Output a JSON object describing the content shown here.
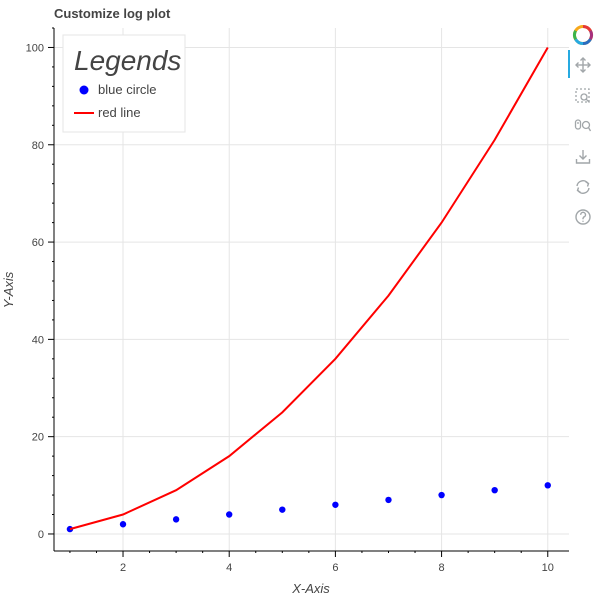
{
  "chart_data": {
    "type": "line",
    "title": "Customize log plot",
    "xlabel": "X-Axis",
    "ylabel": "Y-Axis",
    "xlim": [
      0.7,
      10.4
    ],
    "ylim": [
      -3.5,
      104
    ],
    "x_ticks": [
      2,
      4,
      6,
      8,
      10
    ],
    "y_ticks": [
      0,
      20,
      40,
      60,
      80,
      100
    ],
    "x_tick_labels": [
      "2",
      "4",
      "6",
      "8",
      "10"
    ],
    "y_tick_labels": [
      "0",
      "20",
      "40",
      "60",
      "80",
      "100"
    ],
    "grid": true,
    "legend": {
      "title": "Legends",
      "placement": "top-left"
    },
    "series": [
      {
        "name": "blue circle",
        "kind": "scatter",
        "color": "#0000ff",
        "x": [
          1,
          2,
          3,
          4,
          5,
          6,
          7,
          8,
          9,
          10
        ],
        "y": [
          1,
          2,
          3,
          4,
          5,
          6,
          7,
          8,
          9,
          10
        ]
      },
      {
        "name": "red line",
        "kind": "line",
        "color": "#ff0000",
        "x": [
          1,
          2,
          3,
          4,
          5,
          6,
          7,
          8,
          9,
          10
        ],
        "y": [
          1,
          4,
          9,
          16,
          25,
          36,
          49,
          64,
          81,
          100
        ]
      }
    ]
  },
  "toolbar": {
    "tools": [
      {
        "name": "bokeh-logo-icon",
        "interactable": true
      },
      {
        "name": "pan-tool-icon",
        "interactable": true
      },
      {
        "name": "box-zoom-tool-icon",
        "interactable": true
      },
      {
        "name": "wheel-zoom-tool-icon",
        "interactable": true
      },
      {
        "name": "save-tool-icon",
        "interactable": true
      },
      {
        "name": "reset-tool-icon",
        "interactable": true
      },
      {
        "name": "help-tool-icon",
        "interactable": true
      }
    ],
    "active_color": "#26aae1",
    "icon_color": "#a1a6a9"
  }
}
